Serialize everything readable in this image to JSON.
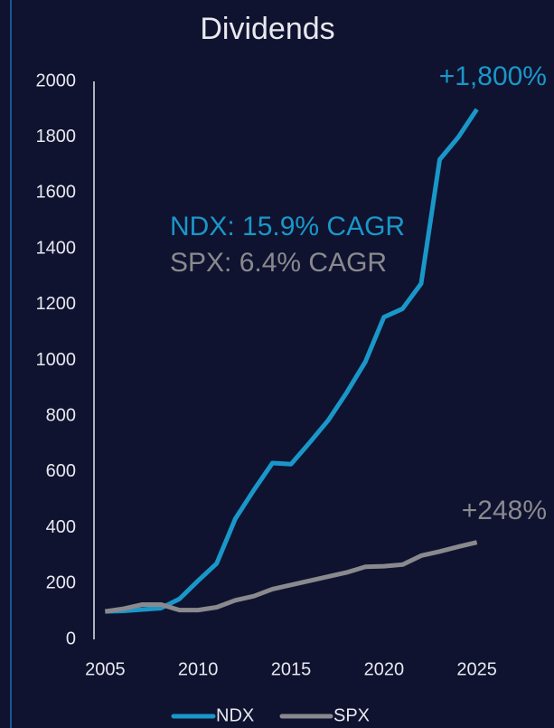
{
  "chart_data": {
    "type": "line",
    "title": "Dividends",
    "x": [
      2005,
      2006,
      2007,
      2008,
      2009,
      2010,
      2011,
      2012,
      2013,
      2014,
      2015,
      2016,
      2017,
      2018,
      2019,
      2020,
      2021,
      2022,
      2023,
      2024,
      2025
    ],
    "series": [
      {
        "name": "NDX",
        "color": "#1a97c9",
        "values": [
          100,
          102,
          107,
          112,
          145,
          210,
          272,
          432,
          535,
          632,
          628,
          705,
          785,
          885,
          995,
          1155,
          1185,
          1275,
          1720,
          1800,
          1900
        ]
      },
      {
        "name": "SPX",
        "color": "#8a8a8e",
        "values": [
          100,
          110,
          125,
          125,
          105,
          105,
          115,
          140,
          155,
          180,
          195,
          210,
          225,
          240,
          260,
          262,
          268,
          300,
          315,
          332,
          348
        ]
      }
    ],
    "annotations": [
      {
        "text": "+1,800%",
        "color": "#1a97c9"
      },
      {
        "text": "+248%",
        "color": "#8a8a8e"
      },
      {
        "text": "NDX: 15.9% CAGR",
        "color": "#1a97c9"
      },
      {
        "text": "SPX: 6.4% CAGR",
        "color": "#8a8a8e"
      }
    ],
    "xlim": [
      2004.4,
      2025.6
    ],
    "xticks": [
      2005,
      2010,
      2015,
      2020,
      2025
    ],
    "ylim": [
      0,
      2000
    ],
    "yticks": [
      0,
      200,
      400,
      600,
      800,
      1000,
      1200,
      1400,
      1600,
      1800,
      2000
    ],
    "grid": false,
    "legend": "bottom"
  }
}
